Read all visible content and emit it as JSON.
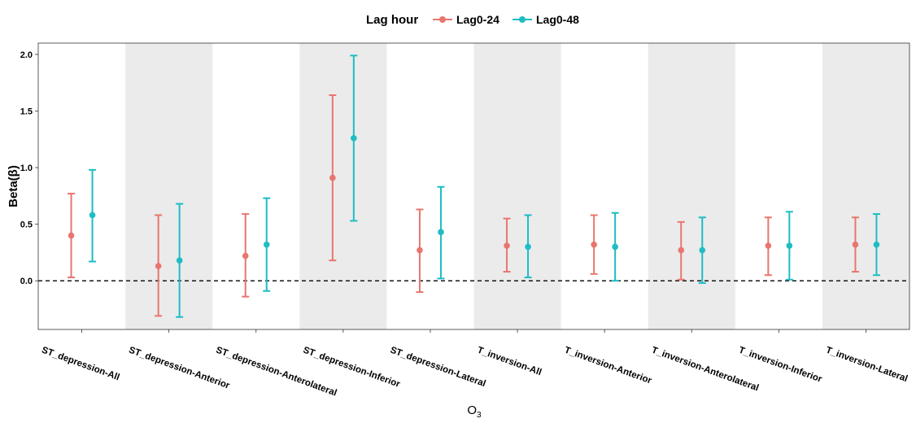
{
  "legend": {
    "title": "Lag hour",
    "items": [
      {
        "label": "Lag0-24",
        "color": "#E8766E"
      },
      {
        "label": "Lag0-48",
        "color": "#1DBDC3"
      }
    ]
  },
  "chart_data": {
    "type": "errorbar-point",
    "xlabel": "O",
    "xlabel_sub": "3",
    "ylabel": "Beta(β)",
    "ylim": [
      -0.43,
      2.1
    ],
    "yticks": [
      0.0,
      0.5,
      1.0,
      1.5,
      2.0
    ],
    "ytick_labels": [
      "0.0",
      "0.5",
      "1.0",
      "1.5",
      "2.0"
    ],
    "reference_line": 0.0,
    "background_shading": "alternating grey bands on every second category",
    "categories": [
      "ST_depression-All",
      "ST_depression-Anterior",
      "ST_depression-Anterolateral",
      "ST_depression-Inferior",
      "ST_depression-Lateral",
      "T_inversion-All",
      "T_inversion-Anterior",
      "T_inversion-Anterolateral",
      "T_inversion-Inferior",
      "T_inversion-Lateral"
    ],
    "series": [
      {
        "name": "Lag0-24",
        "color": "#E8766E",
        "estimate": [
          0.4,
          0.13,
          0.22,
          0.91,
          0.27,
          0.31,
          0.32,
          0.27,
          0.31,
          0.32
        ],
        "lower": [
          0.03,
          -0.31,
          -0.14,
          0.18,
          -0.1,
          0.08,
          0.06,
          0.01,
          0.05,
          0.08
        ],
        "upper": [
          0.77,
          0.58,
          0.59,
          1.64,
          0.63,
          0.55,
          0.58,
          0.52,
          0.56,
          0.56
        ]
      },
      {
        "name": "Lag0-48",
        "color": "#1DBDC3",
        "estimate": [
          0.58,
          0.18,
          0.32,
          1.26,
          0.43,
          0.3,
          0.3,
          0.27,
          0.31,
          0.32
        ],
        "lower": [
          0.17,
          -0.32,
          -0.09,
          0.53,
          0.02,
          0.03,
          0.0,
          -0.02,
          0.01,
          0.05
        ],
        "upper": [
          0.98,
          0.68,
          0.73,
          1.99,
          0.83,
          0.58,
          0.6,
          0.56,
          0.61,
          0.59
        ]
      }
    ]
  }
}
